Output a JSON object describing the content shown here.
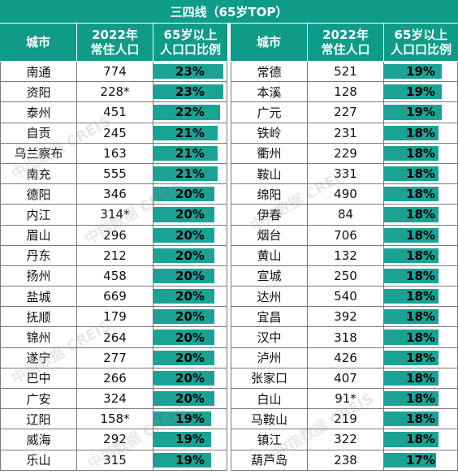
{
  "title": "三四线（65岁TOP）",
  "headers": {
    "city": "城市",
    "pop_line1": "2022年",
    "pop_line2": "常住人口",
    "ratio_line1": "65岁以上",
    "ratio_line2": "人口口比例"
  },
  "left_rows": [
    {
      "city": "南通",
      "pop": "774",
      "pct": "23%",
      "pct_value": 23
    },
    {
      "city": "资阳",
      "pop": "228*",
      "pct": "23%",
      "pct_value": 23
    },
    {
      "city": "泰州",
      "pop": "451",
      "pct": "22%",
      "pct_value": 22
    },
    {
      "city": "自贡",
      "pop": "245",
      "pct": "21%",
      "pct_value": 21
    },
    {
      "city": "乌兰察布",
      "pop": "163",
      "pct": "21%",
      "pct_value": 21
    },
    {
      "city": "南充",
      "pop": "555",
      "pct": "21%",
      "pct_value": 21
    },
    {
      "city": "德阳",
      "pop": "346",
      "pct": "20%",
      "pct_value": 20
    },
    {
      "city": "内江",
      "pop": "314*",
      "pct": "20%",
      "pct_value": 20
    },
    {
      "city": "眉山",
      "pop": "296",
      "pct": "20%",
      "pct_value": 20
    },
    {
      "city": "丹东",
      "pop": "212",
      "pct": "20%",
      "pct_value": 20
    },
    {
      "city": "扬州",
      "pop": "458",
      "pct": "20%",
      "pct_value": 20
    },
    {
      "city": "盐城",
      "pop": "669",
      "pct": "20%",
      "pct_value": 20
    },
    {
      "city": "抚顺",
      "pop": "179",
      "pct": "20%",
      "pct_value": 20
    },
    {
      "city": "锦州",
      "pop": "264",
      "pct": "20%",
      "pct_value": 20
    },
    {
      "city": "遂宁",
      "pop": "277",
      "pct": "20%",
      "pct_value": 20
    },
    {
      "city": "巴中",
      "pop": "266",
      "pct": "20%",
      "pct_value": 20
    },
    {
      "city": "广安",
      "pop": "324",
      "pct": "20%",
      "pct_value": 20
    },
    {
      "city": "辽阳",
      "pop": "158*",
      "pct": "19%",
      "pct_value": 19
    },
    {
      "city": "威海",
      "pop": "292",
      "pct": "19%",
      "pct_value": 19
    },
    {
      "city": "乐山",
      "pop": "315",
      "pct": "19%",
      "pct_value": 19
    }
  ],
  "right_rows": [
    {
      "city": "常德",
      "pop": "521",
      "pct": "19%",
      "pct_value": 19
    },
    {
      "city": "本溪",
      "pop": "128",
      "pct": "19%",
      "pct_value": 19
    },
    {
      "city": "广元",
      "pop": "227",
      "pct": "19%",
      "pct_value": 19
    },
    {
      "city": "铁岭",
      "pop": "231",
      "pct": "18%",
      "pct_value": 18
    },
    {
      "city": "衢州",
      "pop": "229",
      "pct": "18%",
      "pct_value": 18
    },
    {
      "city": "鞍山",
      "pop": "331",
      "pct": "18%",
      "pct_value": 18
    },
    {
      "city": "绵阳",
      "pop": "490",
      "pct": "18%",
      "pct_value": 18
    },
    {
      "city": "伊春",
      "pop": "84",
      "pct": "18%",
      "pct_value": 18
    },
    {
      "city": "烟台",
      "pop": "706",
      "pct": "18%",
      "pct_value": 18
    },
    {
      "city": "黄山",
      "pop": "132",
      "pct": "18%",
      "pct_value": 18
    },
    {
      "city": "宣城",
      "pop": "250",
      "pct": "18%",
      "pct_value": 18
    },
    {
      "city": "达州",
      "pop": "540",
      "pct": "18%",
      "pct_value": 18
    },
    {
      "city": "宜昌",
      "pop": "392",
      "pct": "18%",
      "pct_value": 18
    },
    {
      "city": "汉中",
      "pop": "318",
      "pct": "18%",
      "pct_value": 18
    },
    {
      "city": "泸州",
      "pop": "426",
      "pct": "18%",
      "pct_value": 18
    },
    {
      "city": "张家口",
      "pop": "407",
      "pct": "18%",
      "pct_value": 18
    },
    {
      "city": "白山",
      "pop": "91*",
      "pct": "18%",
      "pct_value": 18
    },
    {
      "city": "马鞍山",
      "pop": "219",
      "pct": "18%",
      "pct_value": 18
    },
    {
      "city": "镇江",
      "pop": "322",
      "pct": "18%",
      "pct_value": 18
    },
    {
      "city": "葫芦岛",
      "pop": "238",
      "pct": "17%",
      "pct_value": 17
    }
  ],
  "watermark": "中指数据 CREIS",
  "colors": {
    "header_bg": "#0e9b88",
    "bar": "#1aa395",
    "grid": "#7a7a7a"
  }
}
